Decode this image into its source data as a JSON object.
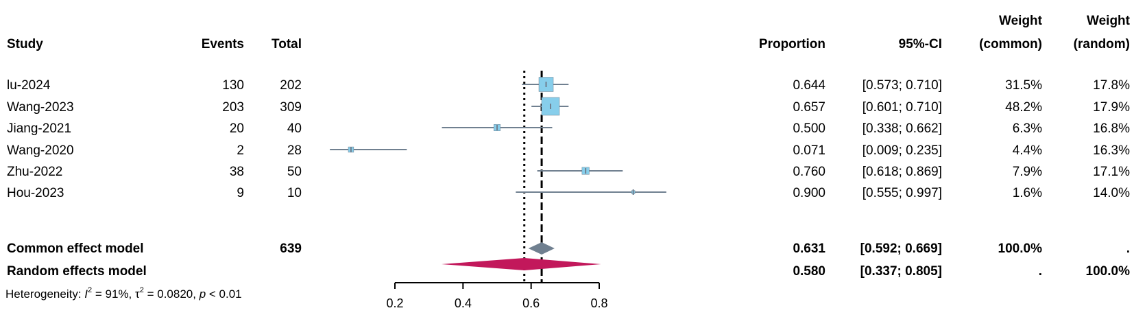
{
  "columns": {
    "study": "Study",
    "events": "Events",
    "total": "Total",
    "proportion": "Proportion",
    "ci": "95%-CI",
    "weight_common_1": "Weight",
    "weight_common_2": "(common)",
    "weight_random_1": "Weight",
    "weight_random_2": "(random)"
  },
  "summary": {
    "common": {
      "label": "Common effect model",
      "total": "639",
      "proportion": "0.631",
      "ci": "[0.592; 0.669]",
      "w_common": "100.0%",
      "w_random": "."
    },
    "random": {
      "label": "Random effects model",
      "proportion": "0.580",
      "ci": "[0.337; 0.805]",
      "w_common": ".",
      "w_random": "100.0%"
    }
  },
  "heterogeneity": {
    "prefix": "Heterogeneity: ",
    "i2_symbol": "I",
    "i2_value": " = 91%, ",
    "tau2_symbol": "τ",
    "tau2_value": " = 0.0820, ",
    "p_symbol": "p",
    "p_value": " < 0.01"
  },
  "chart_data": {
    "type": "forest",
    "xlim": [
      0.2,
      0.8
    ],
    "ticks": [
      0.2,
      0.4,
      0.6,
      0.8
    ],
    "tick_labels": [
      "0.2",
      "0.4",
      "0.6",
      "0.8"
    ],
    "reference_lines": {
      "common": 0.631,
      "random": 0.58
    },
    "studies": [
      {
        "name": "lu-2024",
        "events": "130",
        "total": "202",
        "proportion": 0.644,
        "lower": 0.573,
        "upper": 0.71,
        "prop_text": "0.644",
        "ci_text": "[0.573; 0.710]",
        "w_common": "31.5%",
        "w_random": "17.8%",
        "weight": 31.5
      },
      {
        "name": "Wang-2023",
        "events": "203",
        "total": "309",
        "proportion": 0.657,
        "lower": 0.601,
        "upper": 0.71,
        "prop_text": "0.657",
        "ci_text": "[0.601; 0.710]",
        "w_common": "48.2%",
        "w_random": "17.9%",
        "weight": 48.2
      },
      {
        "name": "Jiang-2021",
        "events": "20",
        "total": "40",
        "proportion": 0.5,
        "lower": 0.338,
        "upper": 0.662,
        "prop_text": "0.500",
        "ci_text": "[0.338; 0.662]",
        "w_common": "6.3%",
        "w_random": "16.8%",
        "weight": 6.3
      },
      {
        "name": "Wang-2020",
        "events": "2",
        "total": "28",
        "proportion": 0.071,
        "lower": 0.009,
        "upper": 0.235,
        "prop_text": "0.071",
        "ci_text": "[0.009; 0.235]",
        "w_common": "4.4%",
        "w_random": "16.3%",
        "weight": 4.4
      },
      {
        "name": "Zhu-2022",
        "events": "38",
        "total": "50",
        "proportion": 0.76,
        "lower": 0.618,
        "upper": 0.869,
        "prop_text": "0.760",
        "ci_text": "[0.618; 0.869]",
        "w_common": "7.9%",
        "w_random": "17.1%",
        "weight": 7.9
      },
      {
        "name": "Hou-2023",
        "events": "9",
        "total": "10",
        "proportion": 0.9,
        "lower": 0.555,
        "upper": 0.997,
        "prop_text": "0.900",
        "ci_text": "[0.555; 0.997]",
        "w_common": "1.6%",
        "w_random": "14.0%",
        "weight": 1.6
      }
    ],
    "common_diamond": {
      "estimate": 0.631,
      "lower": 0.592,
      "upper": 0.669
    },
    "random_diamond": {
      "estimate": 0.58,
      "lower": 0.337,
      "upper": 0.805
    },
    "colors": {
      "square": "#87CEEB",
      "ci_line": "#708090",
      "common_diamond": "#708090",
      "random_diamond": "#C2185B"
    }
  }
}
